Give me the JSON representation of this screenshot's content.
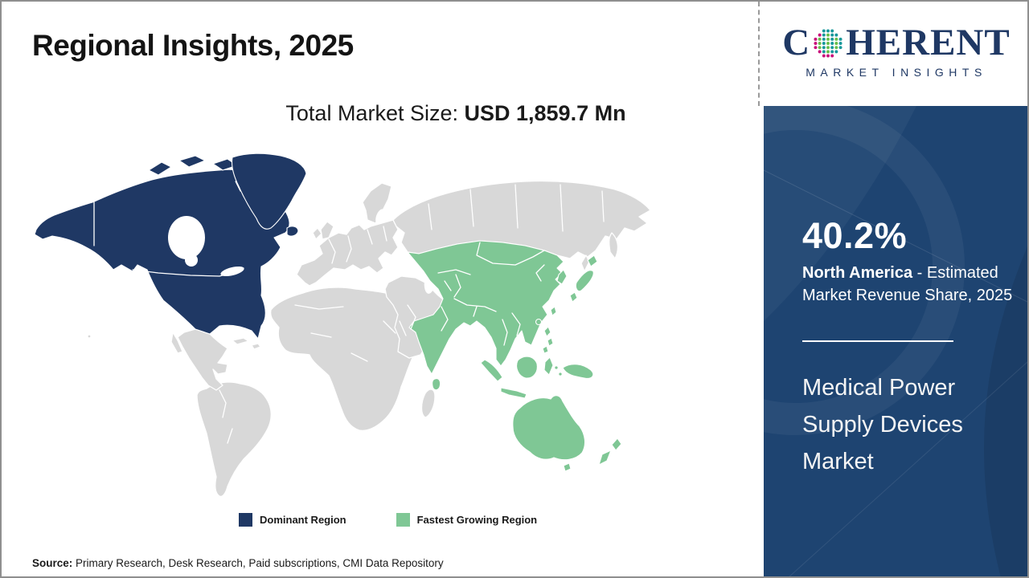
{
  "header": {
    "title": "Regional Insights, 2025",
    "market_size_label": "Total Market Size:",
    "market_size_value": "USD 1,859.7 Mn"
  },
  "logo": {
    "prefix": "C",
    "suffix": "HERENT",
    "subtitle": "MARKET INSIGHTS",
    "colors": {
      "navy": "#1F3864",
      "teal": "#18989B",
      "green": "#67BE4A",
      "magenta": "#C9107B"
    }
  },
  "map": {
    "type": "choropleth-world-map",
    "regions": [
      {
        "name": "North America",
        "role": "Dominant Region",
        "color": "#1F3864"
      },
      {
        "name": "Asia Pacific",
        "role": "Fastest Growing Region",
        "color": "#7FC795"
      },
      {
        "name": "Rest of World",
        "role": "Other",
        "color": "#D8D8D8"
      }
    ]
  },
  "legend": {
    "items": [
      {
        "label": "Dominant Region",
        "color": "#1F3864"
      },
      {
        "label": "Fastest Growing Region",
        "color": "#7FC795"
      }
    ]
  },
  "sidebar": {
    "background": "#1E4471",
    "share_value": "40.2%",
    "share_region": "North America",
    "share_desc_rest": " - Estimated Market Revenue Share, 2025",
    "report_title": "Medical Power Supply Devices Market"
  },
  "footer": {
    "source_label": "Source:",
    "source_text": " Primary Research, Desk Research, Paid subscriptions, CMI Data Repository"
  }
}
